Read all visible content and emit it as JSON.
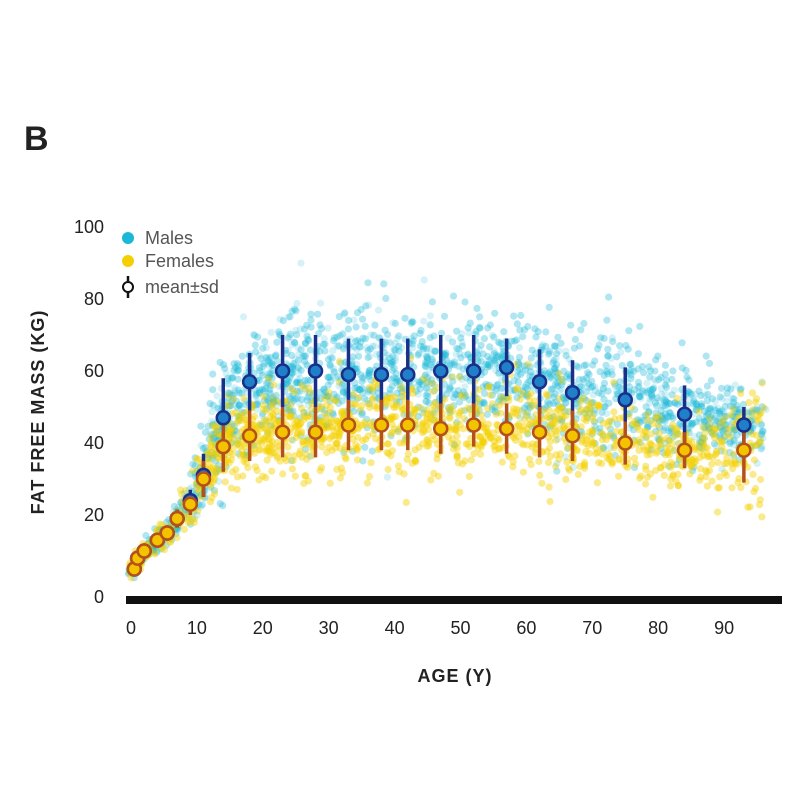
{
  "chart_data": {
    "type": "scatter",
    "panel_label": "B",
    "xlabel": "AGE (Y)",
    "ylabel": "FAT FREE MASS (KG)",
    "xlim": [
      0,
      100
    ],
    "ylim": [
      0,
      100
    ],
    "xticks": [
      "0",
      "10",
      "20",
      "30",
      "40",
      "50",
      "60",
      "70",
      "80",
      "90"
    ],
    "xtick_values": [
      0,
      10,
      20,
      30,
      40,
      50,
      60,
      70,
      80,
      90
    ],
    "yticks": [
      "0",
      "20",
      "40",
      "60",
      "80",
      "100"
    ],
    "ytick_values": [
      0,
      20,
      40,
      60,
      80,
      100
    ],
    "legend": {
      "position": "top-left",
      "entries": [
        "Males",
        "Females",
        "mean±sd"
      ]
    },
    "colors": {
      "males": "#1ab8d8",
      "females": "#f5d000",
      "male_mean": "#1f7fc8",
      "male_bar": "#1a2f8a",
      "female_mean": "#f3c300",
      "female_bar": "#b5501a"
    },
    "series": [
      {
        "name": "Males mean±sd",
        "x": [
          0.5,
          1,
          2,
          4,
          5.5,
          7,
          9,
          11,
          14,
          18,
          23,
          28,
          33,
          38,
          42,
          47,
          52,
          57,
          62,
          67,
          75,
          84,
          93
        ],
        "y": [
          5,
          8,
          10,
          13,
          15,
          19,
          24,
          31,
          47,
          57,
          60,
          60,
          59,
          59,
          59,
          60,
          60,
          61,
          57,
          54,
          52,
          48,
          45
        ],
        "sd": [
          1,
          1.5,
          1.5,
          2,
          2,
          2.5,
          3,
          6,
          11,
          8,
          10,
          10,
          10,
          10,
          10,
          10,
          10,
          8,
          9,
          9,
          9,
          8,
          5
        ]
      },
      {
        "name": "Females mean±sd",
        "x": [
          0.5,
          1,
          2,
          4,
          5.5,
          7,
          9,
          11,
          14,
          18,
          23,
          28,
          33,
          38,
          42,
          47,
          52,
          57,
          62,
          67,
          75,
          84,
          93
        ],
        "y": [
          5,
          8,
          10,
          13,
          15,
          19,
          23,
          30,
          39,
          42,
          43,
          43,
          45,
          45,
          45,
          44,
          45,
          44,
          43,
          42,
          40,
          38,
          38
        ],
        "sd": [
          1,
          1.5,
          1.5,
          2,
          2,
          2.5,
          3,
          5,
          7,
          7,
          7,
          7,
          7,
          7,
          7,
          7,
          6,
          7,
          7,
          7,
          6,
          5,
          9
        ]
      }
    ]
  }
}
